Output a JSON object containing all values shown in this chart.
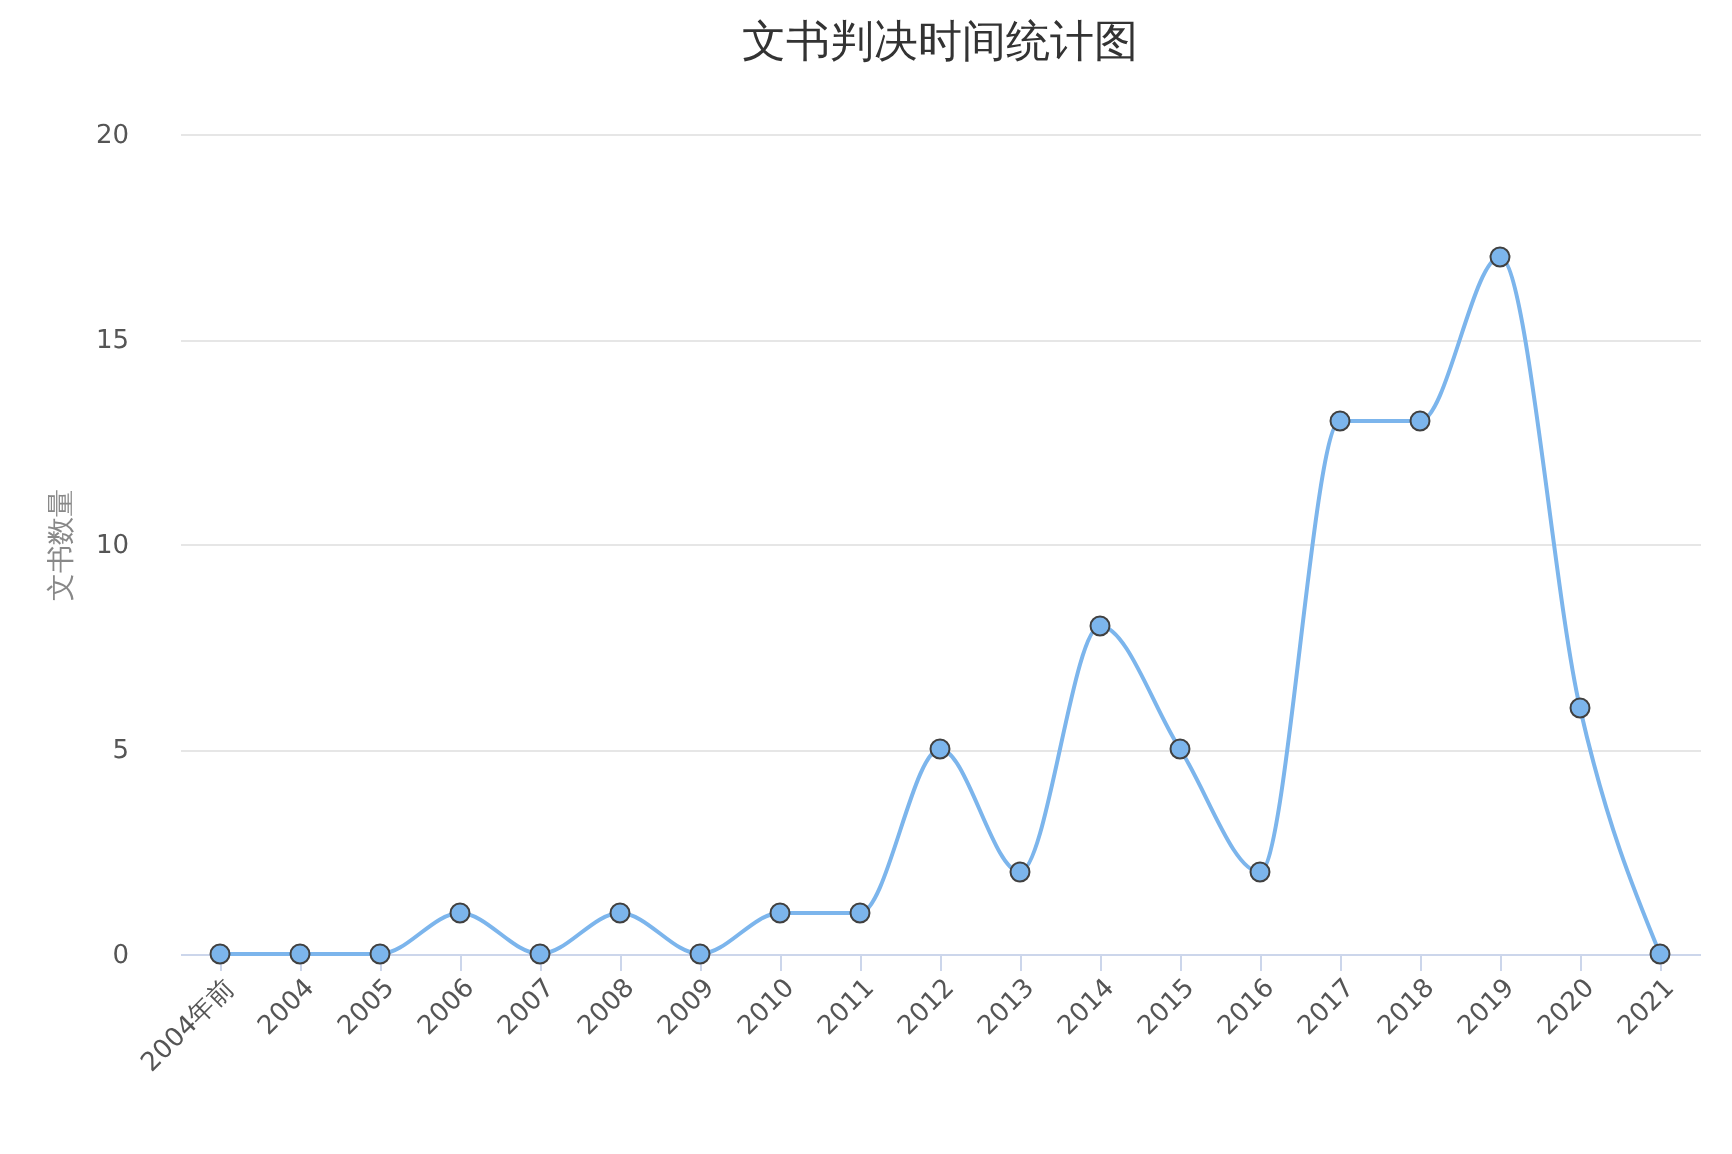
{
  "chart_data": {
    "type": "line",
    "title": "文书判决时间统计图",
    "ylabel": "文书数量",
    "categories": [
      "2004年前",
      "2004",
      "2005",
      "2006",
      "2007",
      "2008",
      "2009",
      "2010",
      "2011",
      "2012",
      "2013",
      "2014",
      "2015",
      "2016",
      "2017",
      "2018",
      "2019",
      "2020",
      "2021"
    ],
    "series": [
      {
        "color": "#7cb5ec",
        "values": [
          0,
          0,
          0,
          1,
          0,
          1,
          0,
          1,
          1,
          5,
          2,
          8,
          5,
          2,
          13,
          13,
          17,
          6,
          0
        ]
      }
    ],
    "ylim": [
      0,
      20
    ],
    "yticks": [
      0,
      5,
      10,
      15,
      20
    ],
    "grid": "y",
    "marker": "circle",
    "line_style": "solid"
  }
}
